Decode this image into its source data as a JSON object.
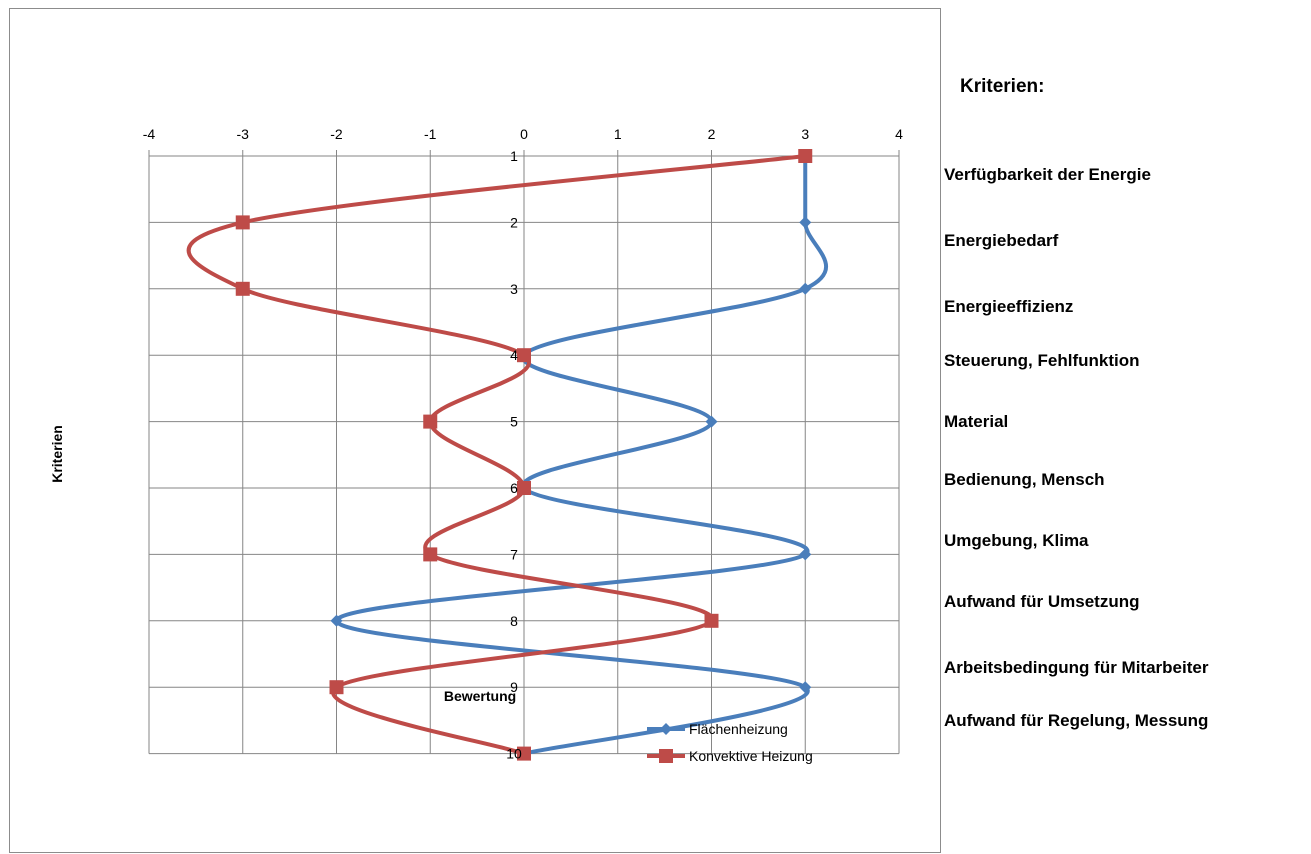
{
  "chart_data": {
    "type": "line",
    "orientation": "vertical-category",
    "xlabel": "Bewertung",
    "ylabel": "Kriterien",
    "xlim": [
      -4,
      4
    ],
    "x_ticks": [
      "-4",
      "-3",
      "-2",
      "-1",
      "0",
      "1",
      "2",
      "3",
      "4"
    ],
    "categories": [
      "1",
      "2",
      "3",
      "4",
      "5",
      "6",
      "7",
      "8",
      "9",
      "10"
    ],
    "grid": true,
    "smoothed": true,
    "legend_position": "bottom-right",
    "series": [
      {
        "name": "Flächenheizung",
        "values": [
          3,
          3,
          3,
          0,
          2,
          0,
          3,
          -2,
          3,
          0
        ],
        "color": "#4a7ebb",
        "marker": "diamond"
      },
      {
        "name": "Konvektive Heizung",
        "values": [
          3,
          -3,
          -3,
          0,
          -1,
          0,
          -1,
          2,
          -2,
          0
        ],
        "color": "#be4b48",
        "marker": "square"
      }
    ]
  },
  "criteria": {
    "heading": "Kriterien:",
    "items": [
      "Verfügbarkeit der Energie",
      "Energiebedarf",
      "Energieeffizienz",
      "Steuerung, Fehlfunktion",
      "Material",
      "Bedienung, Mensch",
      "Umgebung, Klima",
      "Aufwand für Umsetzung",
      "Arbeitsbedingung für Mitarbeiter",
      "Aufwand für Regelung, Messung"
    ]
  }
}
